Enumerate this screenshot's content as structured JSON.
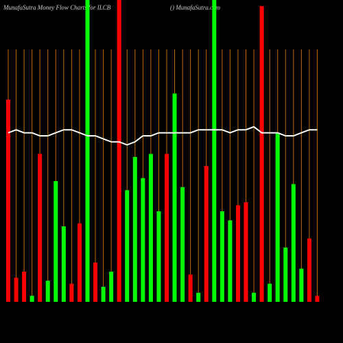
{
  "chart_data": {
    "type": "bar",
    "title": "MunafaSutra  Money Flow  Charts for ILCB",
    "subtitle": "() MunafaSutra.com",
    "categories": [
      null,
      null,
      null,
      null,
      null,
      null,
      null,
      null,
      null,
      null,
      null,
      null,
      null,
      null,
      null,
      null,
      null,
      null,
      null,
      null,
      null,
      null,
      null,
      null,
      null,
      null,
      null,
      null,
      null,
      null,
      null,
      null,
      null,
      null,
      null,
      null,
      null,
      null,
      null,
      null
    ],
    "ylim": [
      0,
      100
    ],
    "series": [
      {
        "type": "bar",
        "colors": [
          "#ff0000",
          "#ff0000",
          "#ff0000",
          "#00ff00",
          "#ff0000",
          "#00ff00",
          "#00ff00",
          "#00ff00",
          "#ff0000",
          "#ff0000",
          "#00ff00",
          "#ff0000",
          "#00ff00",
          "#00ff00",
          "#ff0000",
          "#00ff00",
          "#00ff00",
          "#00ff00",
          "#00ff00",
          "#00ff00",
          "#ff0000",
          "#00ff00",
          "#00ff00",
          "#ff0000",
          "#00ff00",
          "#ff0000",
          "#00ff00",
          "#00ff00",
          "#00ff00",
          "#ff0000",
          "#ff0000",
          "#00ff00",
          "#ff0000",
          "#00ff00",
          "#00ff00",
          "#00ff00",
          "#00ff00",
          "#00ff00",
          "#ff0000",
          "#ff0000"
        ],
        "values": [
          67,
          8,
          10,
          2,
          49,
          7,
          40,
          25,
          6,
          26,
          105,
          13,
          5,
          10,
          105,
          37,
          48,
          41,
          49,
          30,
          49,
          69,
          38,
          9,
          3,
          45,
          105,
          30,
          27,
          32,
          33,
          3,
          98,
          6,
          56,
          18,
          39,
          11,
          21,
          2
        ]
      },
      {
        "type": "line",
        "color": "#ffffff",
        "values": [
          56,
          57,
          56,
          56,
          55,
          55,
          56,
          57,
          57,
          56,
          55,
          55,
          54,
          53,
          53,
          52,
          53,
          55,
          55,
          56,
          56,
          56,
          56,
          56,
          57,
          57,
          57,
          57,
          56,
          57,
          57,
          58,
          56,
          56,
          56,
          55,
          55,
          56,
          57,
          57
        ]
      }
    ]
  }
}
